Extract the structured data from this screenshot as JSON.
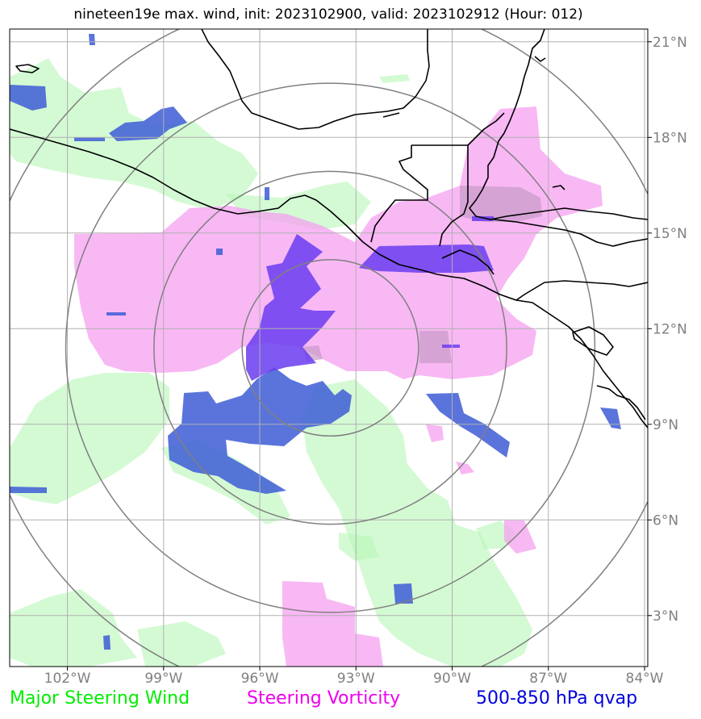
{
  "title": "nineteen19e max. wind, init: 2023102900, valid: 2023102912 (Hour: 012)",
  "map": {
    "lon_range": [
      -103.8,
      -83.9
    ],
    "lat_range": [
      1.4,
      21.4
    ],
    "lon_ticks": [
      {
        "value": -102,
        "label": "102°W"
      },
      {
        "value": -99,
        "label": "99°W"
      },
      {
        "value": -96,
        "label": "96°W"
      },
      {
        "value": -93,
        "label": "93°W"
      },
      {
        "value": -90,
        "label": "90°W"
      },
      {
        "value": -87,
        "label": "87°W"
      },
      {
        "value": -84,
        "label": "84°W"
      }
    ],
    "lat_ticks": [
      {
        "value": 21,
        "label": "21°N"
      },
      {
        "value": 18,
        "label": "18°N"
      },
      {
        "value": 15,
        "label": "15°N"
      },
      {
        "value": 12,
        "label": "12°N"
      },
      {
        "value": 9,
        "label": "9°N"
      },
      {
        "value": 6,
        "label": "6°N"
      },
      {
        "value": 3,
        "label": "3°N"
      }
    ],
    "storm_center": {
      "lon": -93.8,
      "lat": 11.4
    },
    "range_ring_radii_deg": [
      2.75,
      5.5,
      8.25,
      11.0
    ],
    "grid": true
  },
  "colors": {
    "steering_wind": "#b8f7b8",
    "vorticity": "#f5a0f0",
    "qvap_light": "#3d5cd6",
    "qvap_strong": "#6a3cf0",
    "coastline": "#000000",
    "grid": "#b0b0b0",
    "ring": "#808080",
    "tick_label": "#808080"
  },
  "legend": [
    {
      "label": "Major Steering Wind",
      "color": "#00ee00"
    },
    {
      "label": "Steering Vorticity",
      "color": "#ee00ee"
    },
    {
      "label": "500-850 hPa qvap",
      "color": "#0000dd"
    }
  ]
}
